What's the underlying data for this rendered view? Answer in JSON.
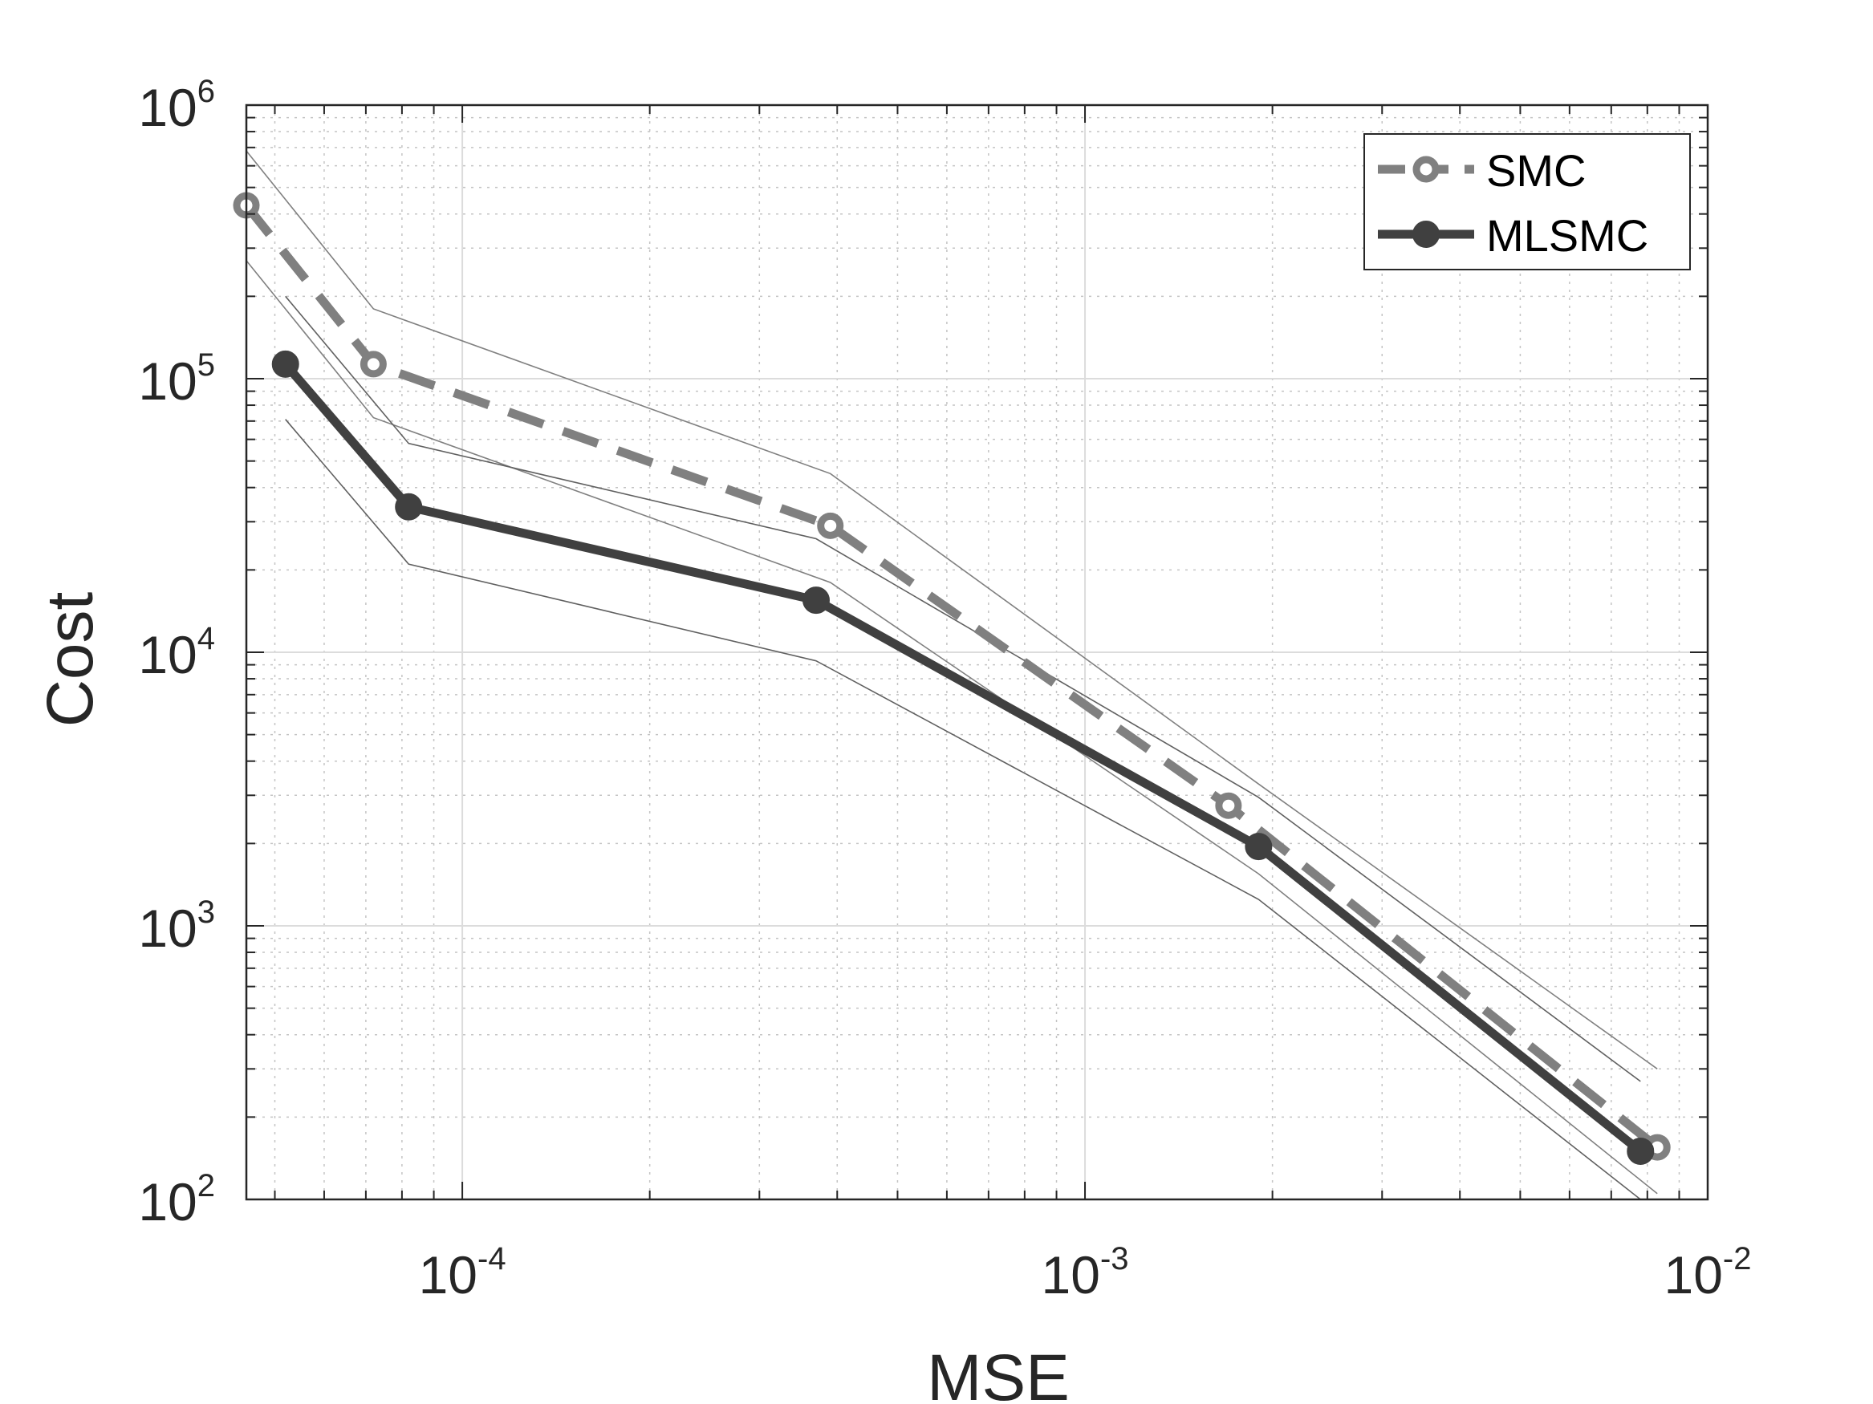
{
  "chart_data": {
    "type": "line",
    "xscale": "log",
    "yscale": "log",
    "xlabel": "MSE",
    "ylabel": "Cost",
    "xlim": [
      4.5e-05,
      0.01
    ],
    "ylim": [
      100,
      1000000
    ],
    "x_ticks": [
      {
        "value": 0.0001,
        "base": "10",
        "exp": "-4"
      },
      {
        "value": 0.001,
        "base": "10",
        "exp": "-3"
      },
      {
        "value": 0.01,
        "base": "10",
        "exp": "-2"
      }
    ],
    "y_ticks": [
      {
        "value": 100,
        "base": "10",
        "exp": "2"
      },
      {
        "value": 1000,
        "base": "10",
        "exp": "3"
      },
      {
        "value": 10000,
        "base": "10",
        "exp": "4"
      },
      {
        "value": 100000,
        "base": "10",
        "exp": "5"
      },
      {
        "value": 1000000,
        "base": "10",
        "exp": "6"
      }
    ],
    "grid": true,
    "minor_grid": true,
    "legend_position": "top-right",
    "series": [
      {
        "name": "SMC",
        "color": "#808080",
        "line_style": "dashed",
        "marker": "open-circle",
        "x": [
          4.5e-05,
          7.2e-05,
          0.00039,
          0.0017,
          0.0083
        ],
        "y": [
          430000,
          113000,
          29000,
          2750,
          155
        ]
      },
      {
        "name": "MLSMC",
        "color": "#404040",
        "line_style": "solid",
        "marker": "filled-circle",
        "x": [
          5.2e-05,
          8.2e-05,
          0.00037,
          0.0019,
          0.0078
        ],
        "y": [
          113000,
          34000,
          15500,
          1950,
          150
        ]
      }
    ],
    "bands": [
      {
        "for": "SMC",
        "bound": "upper",
        "color": "#808080",
        "x": [
          4.5e-05,
          7.2e-05,
          0.00039,
          0.0019,
          0.0083
        ],
        "y": [
          680000,
          180000,
          45000,
          3300,
          300
        ]
      },
      {
        "for": "SMC",
        "bound": "lower",
        "color": "#808080",
        "x": [
          4.5e-05,
          7.2e-05,
          0.00039,
          0.0019,
          0.0083
        ],
        "y": [
          270000,
          72000,
          18000,
          1550,
          105
        ]
      },
      {
        "for": "MLSMC",
        "bound": "upper",
        "color": "#606060",
        "x": [
          5.2e-05,
          8.2e-05,
          0.00037,
          0.0019,
          0.0078
        ],
        "y": [
          200000,
          58000,
          26000,
          2950,
          270
        ]
      },
      {
        "for": "MLSMC",
        "bound": "lower",
        "color": "#606060",
        "x": [
          5.2e-05,
          8.2e-05,
          0.00037,
          0.0019,
          0.0078
        ],
        "y": [
          71000,
          21000,
          9300,
          1250,
          100
        ]
      }
    ]
  }
}
